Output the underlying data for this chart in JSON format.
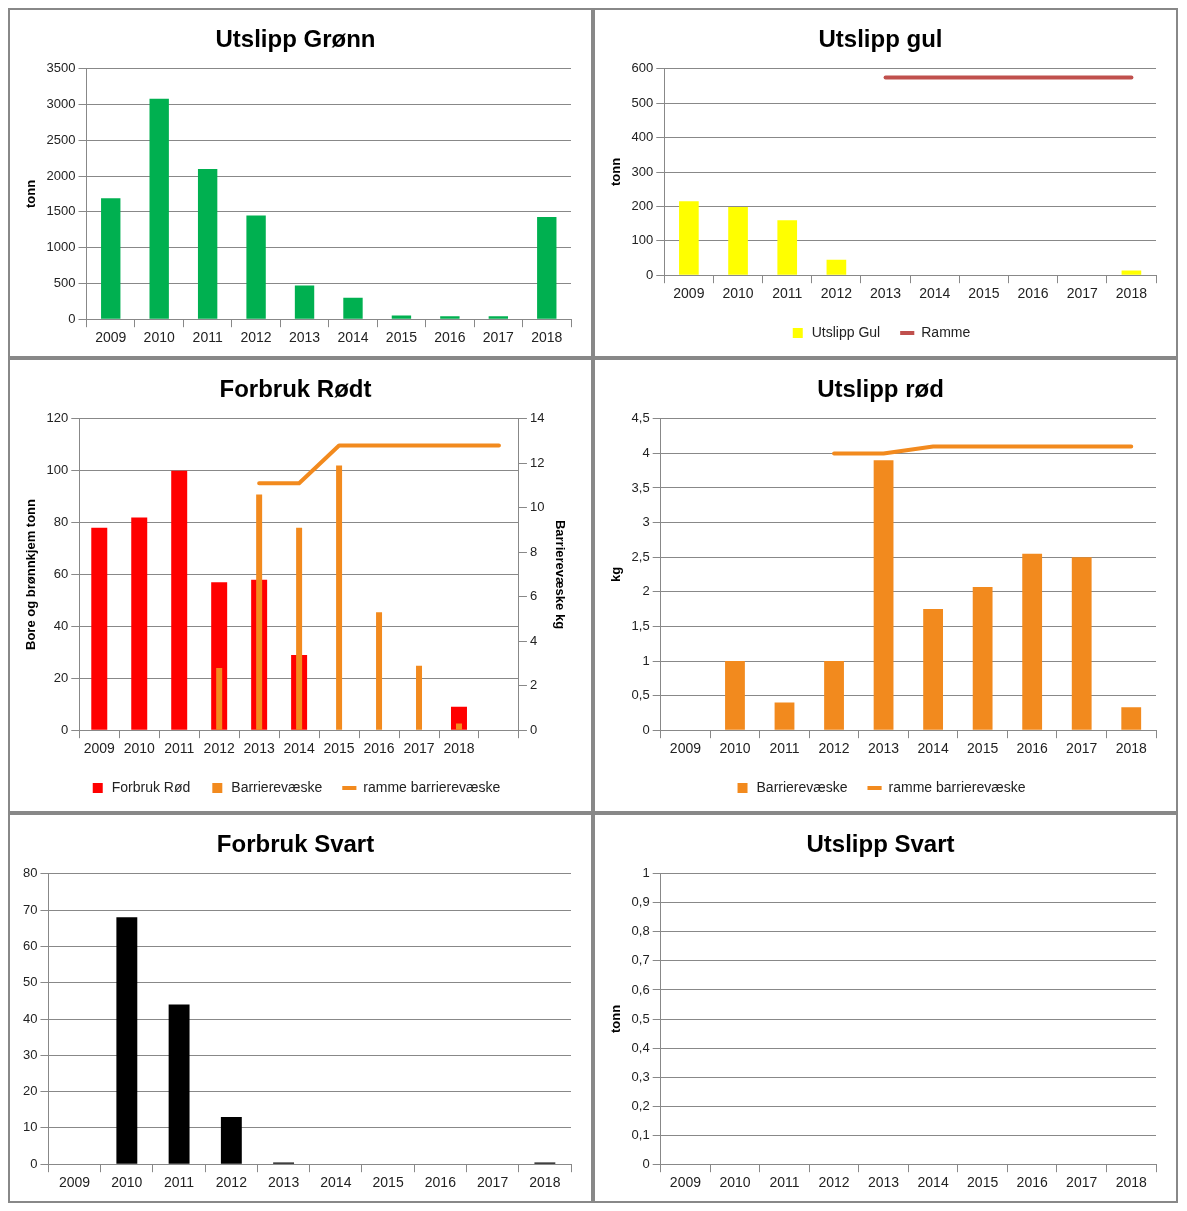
{
  "chart_data": [
    {
      "type": "bar",
      "title": "Utslipp Grønn",
      "ylabel": "tonn",
      "categories": [
        "2009",
        "2010",
        "2011",
        "2012",
        "2013",
        "2014",
        "2015",
        "2016",
        "2017",
        "2018"
      ],
      "values": [
        1690,
        3080,
        2100,
        1450,
        470,
        300,
        50,
        40,
        40,
        1430
      ],
      "color": "#00b050",
      "ylim": [
        0,
        3500
      ],
      "yticks": [
        0,
        500,
        1000,
        1500,
        2000,
        2500,
        3000,
        3500
      ],
      "grid": "y"
    },
    {
      "type": "bar",
      "title": "Utslipp gul",
      "ylabel": "tonn",
      "categories": [
        "2009",
        "2010",
        "2011",
        "2012",
        "2013",
        "2014",
        "2015",
        "2016",
        "2017",
        "2018"
      ],
      "series": [
        {
          "name": "Utslipp Gul",
          "color": "#ffff00",
          "values": [
            215,
            198,
            160,
            45,
            null,
            null,
            null,
            null,
            null,
            14
          ]
        },
        {
          "name": "Ramme",
          "type": "line",
          "color": "#c0504d",
          "values": [
            null,
            null,
            null,
            null,
            575,
            575,
            575,
            575,
            575,
            575
          ]
        }
      ],
      "ylim": [
        0,
        600
      ],
      "yticks": [
        0,
        100,
        200,
        300,
        400,
        500,
        600
      ],
      "grid": "y",
      "legend": "bottom"
    },
    {
      "type": "bar",
      "title": "Forbruk Rødt",
      "ylabel": "Bore og brønnkjem tonn",
      "y2label": "Barrierevæske kg",
      "categories": [
        "2009",
        "2010",
        "2011",
        "2012",
        "2013",
        "2014",
        "2015",
        "2016",
        "2017",
        "2018",
        null
      ],
      "series": [
        {
          "name": "Forbruk Rød",
          "color": "#ff0000",
          "values": [
            78,
            82,
            100,
            57,
            58,
            29,
            null,
            null,
            null,
            9,
            null
          ]
        },
        {
          "name": "Barrierevæske",
          "color": "#f28a1e",
          "axis": "y2",
          "values": [
            null,
            null,
            null,
            2.8,
            10.6,
            9.1,
            11.9,
            5.3,
            2.9,
            0.3,
            null
          ]
        },
        {
          "name": "ramme barrierevæske",
          "type": "line",
          "color": "#f28a1e",
          "axis": "y2",
          "values": [
            null,
            null,
            null,
            null,
            11.1,
            11.1,
            12.8,
            12.8,
            12.8,
            12.8,
            12.8
          ]
        }
      ],
      "ylim": [
        0,
        120
      ],
      "yticks": [
        0,
        20,
        40,
        60,
        80,
        100,
        120
      ],
      "y2lim": [
        0,
        14
      ],
      "y2ticks": [
        0,
        2,
        4,
        6,
        8,
        10,
        12,
        14
      ],
      "grid": "y",
      "legend": "bottom"
    },
    {
      "type": "bar",
      "title": "Utslipp rød",
      "ylabel": "kg",
      "categories": [
        "2009",
        "2010",
        "2011",
        "2012",
        "2013",
        "2014",
        "2015",
        "2016",
        "2017",
        "2018"
      ],
      "series": [
        {
          "name": "Barrierevæske",
          "color": "#f28a1e",
          "values": [
            null,
            1.0,
            0.4,
            1.0,
            3.9,
            1.75,
            2.07,
            2.55,
            2.5,
            0.33
          ]
        },
        {
          "name": "ramme barrierevæske",
          "type": "line",
          "color": "#f28a1e",
          "values": [
            null,
            null,
            null,
            4.0,
            4.0,
            4.1,
            4.1,
            4.1,
            4.1,
            4.1
          ]
        }
      ],
      "ylim": [
        0,
        4.5
      ],
      "yticks": [
        0,
        {
          "value": 0.5,
          "label": "0,5"
        },
        1,
        {
          "value": 1.5,
          "label": "1,5"
        },
        2,
        {
          "value": 2.5,
          "label": "2,5"
        },
        3,
        {
          "value": 3.5,
          "label": "3,5"
        },
        4,
        {
          "value": 4.5,
          "label": "4,5"
        }
      ],
      "grid": "y",
      "legend": "bottom"
    },
    {
      "type": "bar",
      "title": "Forbruk Svart",
      "categories": [
        "2009",
        "2010",
        "2011",
        "2012",
        "2013",
        "2014",
        "2015",
        "2016",
        "2017",
        "2018"
      ],
      "values": [
        null,
        68,
        44,
        13,
        0.5,
        null,
        null,
        null,
        null,
        0.5
      ],
      "color": "#000000",
      "ylim": [
        0,
        80
      ],
      "yticks": [
        0,
        10,
        20,
        30,
        40,
        50,
        60,
        70,
        80
      ],
      "grid": "y"
    },
    {
      "type": "bar",
      "title": "Utslipp Svart",
      "ylabel": "tonn",
      "categories": [
        "2009",
        "2010",
        "2011",
        "2012",
        "2013",
        "2014",
        "2015",
        "2016",
        "2017",
        "2018"
      ],
      "values": [
        null,
        null,
        null,
        null,
        null,
        null,
        null,
        null,
        null,
        null
      ],
      "color": "#000000",
      "ylim": [
        0,
        1
      ],
      "yticks": [
        0,
        {
          "value": 0.1,
          "label": "0,1"
        },
        {
          "value": 0.2,
          "label": "0,2"
        },
        {
          "value": 0.3,
          "label": "0,3"
        },
        {
          "value": 0.4,
          "label": "0,4"
        },
        {
          "value": 0.5,
          "label": "0,5"
        },
        {
          "value": 0.6,
          "label": "0,6"
        },
        {
          "value": 0.7,
          "label": "0,7"
        },
        {
          "value": 0.8,
          "label": "0,8"
        },
        {
          "value": 0.9,
          "label": "0,9"
        },
        1
      ],
      "grid": "y"
    }
  ]
}
